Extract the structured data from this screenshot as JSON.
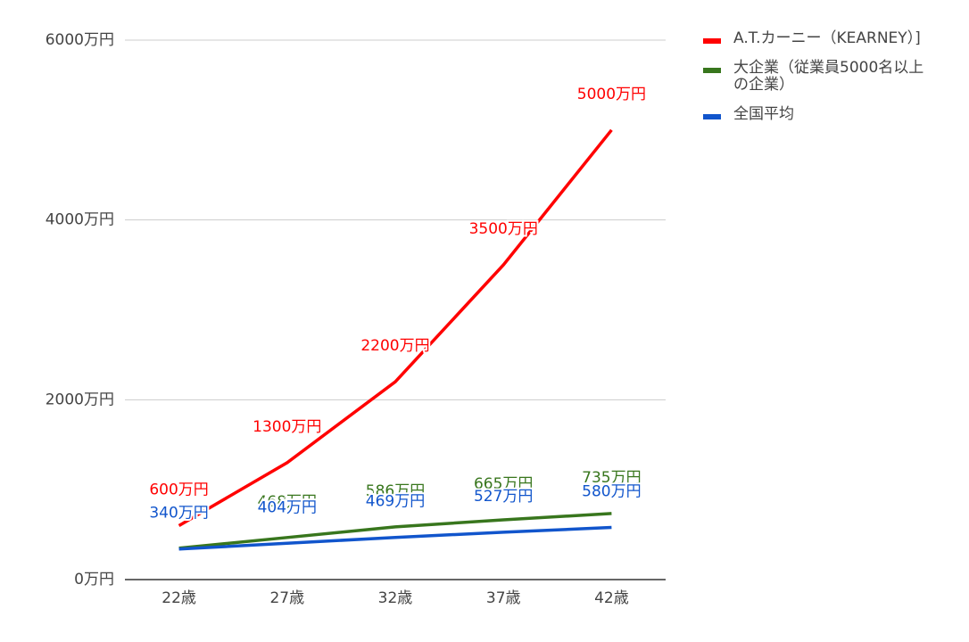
{
  "chart_data": {
    "type": "line",
    "categories": [
      "22歳",
      "27歳",
      "32歳",
      "37歳",
      "42歳"
    ],
    "series": [
      {
        "name": "A.T.カーニー（KEARNEY）]",
        "color": "#ff0000",
        "values": [
          600,
          1300,
          2200,
          3500,
          5000
        ],
        "value_labels": [
          "600万円",
          "1300万円",
          "2200万円",
          "3500万円",
          "5000万円"
        ]
      },
      {
        "name": "大企業（従業員5000名以上の企業）",
        "color": "#38761d",
        "values": [
          350,
          468,
          586,
          665,
          735
        ],
        "value_labels": [
          null,
          "468万円",
          "586万円",
          "665万円",
          "735万円"
        ]
      },
      {
        "name": "全国平均",
        "color": "#1155cc",
        "values": [
          340,
          404,
          469,
          527,
          580
        ],
        "value_labels": [
          "340万円",
          "404万円",
          "469万円",
          "527万円",
          "580万円"
        ]
      }
    ],
    "ylim": [
      0,
      6000
    ],
    "yticks": [
      {
        "value": 0,
        "label": "0万円"
      },
      {
        "value": 2000,
        "label": "2000万円"
      },
      {
        "value": 4000,
        "label": "4000万円"
      },
      {
        "value": 6000,
        "label": "6000万円"
      }
    ],
    "grid": true,
    "legend": "right"
  }
}
